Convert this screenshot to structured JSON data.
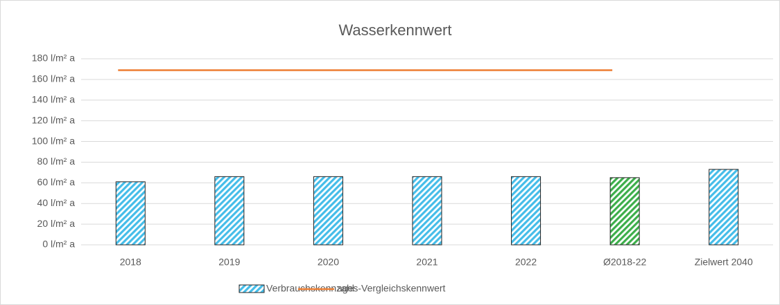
{
  "chart_data": {
    "type": "bar",
    "title": "Wasserkennwert",
    "categories": [
      "2018",
      "2019",
      "2020",
      "2021",
      "2022",
      "Ø2018-22",
      "Zielwert 2040"
    ],
    "series": [
      {
        "name": "Verbrauchskennzahl",
        "type": "bar",
        "color": "#45bde9",
        "colors": [
          "#45bde9",
          "#45bde9",
          "#45bde9",
          "#45bde9",
          "#45bde9",
          "#3cae4a",
          "#45bde9"
        ],
        "values": [
          61,
          66,
          66,
          66,
          66,
          65,
          73
        ]
      },
      {
        "name": "ages-Vergleichskennwert",
        "type": "line",
        "color": "#ed7d31",
        "values": [
          169,
          169,
          169,
          169,
          169,
          169,
          null
        ]
      }
    ],
    "ylim": [
      0,
      180
    ],
    "yticks": [
      {
        "value": 0,
        "label": "0 l/m² a"
      },
      {
        "value": 20,
        "label": "20 l/m² a"
      },
      {
        "value": 40,
        "label": "40 l/m² a"
      },
      {
        "value": 60,
        "label": "60 l/m² a"
      },
      {
        "value": 80,
        "label": "80 l/m² a"
      },
      {
        "value": 100,
        "label": "100 l/m² a"
      },
      {
        "value": 120,
        "label": "120 l/m² a"
      },
      {
        "value": 140,
        "label": "140 l/m² a"
      },
      {
        "value": 160,
        "label": "160 l/m² a"
      },
      {
        "value": 180,
        "label": "180 l/m² a"
      }
    ],
    "grid": true,
    "legend": "bottom"
  }
}
